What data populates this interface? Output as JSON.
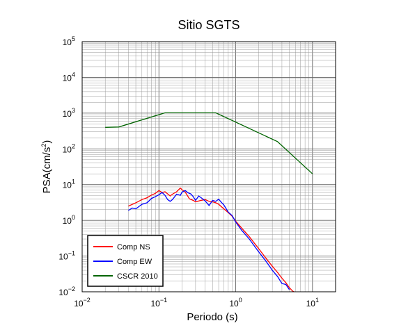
{
  "chart_data": {
    "type": "line",
    "title": "Sitio SGTS",
    "xlabel": "Periodo (s)",
    "ylabel": {
      "base": "PSA(cm/s",
      "sup": "2",
      "tail": ")"
    },
    "xscale": "log",
    "yscale": "log",
    "xlim": [
      0.01,
      20
    ],
    "ylim": [
      0.01,
      100000
    ],
    "x_ticks": [
      {
        "base": "10",
        "exp": "−2",
        "value": 0.01
      },
      {
        "base": "10",
        "exp": "−1",
        "value": 0.1
      },
      {
        "base": "10",
        "exp": "0",
        "value": 1
      },
      {
        "base": "10",
        "exp": "1",
        "value": 10
      }
    ],
    "y_ticks": [
      {
        "base": "10",
        "exp": "−2",
        "value": 0.01
      },
      {
        "base": "10",
        "exp": "−1",
        "value": 0.1
      },
      {
        "base": "10",
        "exp": "0",
        "value": 1
      },
      {
        "base": "10",
        "exp": "1",
        "value": 10
      },
      {
        "base": "10",
        "exp": "2",
        "value": 100
      },
      {
        "base": "10",
        "exp": "3",
        "value": 1000
      },
      {
        "base": "10",
        "exp": "4",
        "value": 10000
      },
      {
        "base": "10",
        "exp": "5",
        "value": 100000
      }
    ],
    "grid": true,
    "legend_position": "bottom-left",
    "series": [
      {
        "name": "Comp NS",
        "color": "#ff0000",
        "x": [
          0.04,
          0.05,
          0.06,
          0.07,
          0.08,
          0.09,
          0.1,
          0.11,
          0.12,
          0.13,
          0.14,
          0.15,
          0.17,
          0.19,
          0.2,
          0.22,
          0.25,
          0.28,
          0.3,
          0.35,
          0.4,
          0.45,
          0.5,
          0.55,
          0.6,
          0.7,
          0.8,
          0.9,
          1.0,
          1.2,
          1.5,
          2.0,
          2.5,
          3.0,
          3.5,
          4.0,
          4.5,
          5.0,
          5.5,
          6.0
        ],
        "y": [
          2.5,
          3.1,
          3.8,
          4.3,
          5.1,
          5.7,
          6.8,
          6.0,
          6.3,
          5.5,
          4.8,
          5.4,
          6.3,
          8.0,
          7.2,
          6.2,
          4.0,
          3.6,
          3.3,
          3.6,
          3.8,
          3.4,
          3.3,
          3.1,
          2.8,
          2.1,
          1.65,
          1.3,
          0.95,
          0.6,
          0.35,
          0.16,
          0.085,
          0.052,
          0.035,
          0.024,
          0.018,
          0.013,
          0.0105,
          0.0095
        ]
      },
      {
        "name": "Comp EW",
        "color": "#0000ff",
        "x": [
          0.04,
          0.045,
          0.05,
          0.06,
          0.07,
          0.08,
          0.09,
          0.1,
          0.11,
          0.12,
          0.13,
          0.14,
          0.15,
          0.17,
          0.19,
          0.2,
          0.22,
          0.24,
          0.26,
          0.28,
          0.3,
          0.33,
          0.36,
          0.4,
          0.45,
          0.5,
          0.55,
          0.6,
          0.65,
          0.7,
          0.8,
          0.9,
          1.0,
          1.2,
          1.5,
          2.0,
          2.5,
          3.0,
          3.5,
          4.0,
          4.5,
          5.0
        ],
        "y": [
          1.9,
          2.2,
          2.1,
          2.8,
          3.1,
          4.1,
          4.6,
          5.2,
          6.0,
          5.0,
          3.8,
          3.4,
          3.8,
          5.4,
          5.0,
          6.2,
          6.8,
          5.9,
          5.5,
          4.6,
          3.6,
          4.8,
          4.2,
          3.5,
          2.6,
          3.6,
          3.4,
          3.9,
          3.2,
          2.7,
          1.7,
          1.35,
          0.9,
          0.52,
          0.3,
          0.13,
          0.07,
          0.04,
          0.027,
          0.017,
          0.016,
          0.0115
        ]
      },
      {
        "name": "CSCR 2010",
        "color": "#006400",
        "x": [
          0.02,
          0.03,
          0.12,
          0.55,
          3.5,
          10
        ],
        "y": [
          400,
          410,
          1020,
          1020,
          160,
          20
        ]
      }
    ]
  }
}
